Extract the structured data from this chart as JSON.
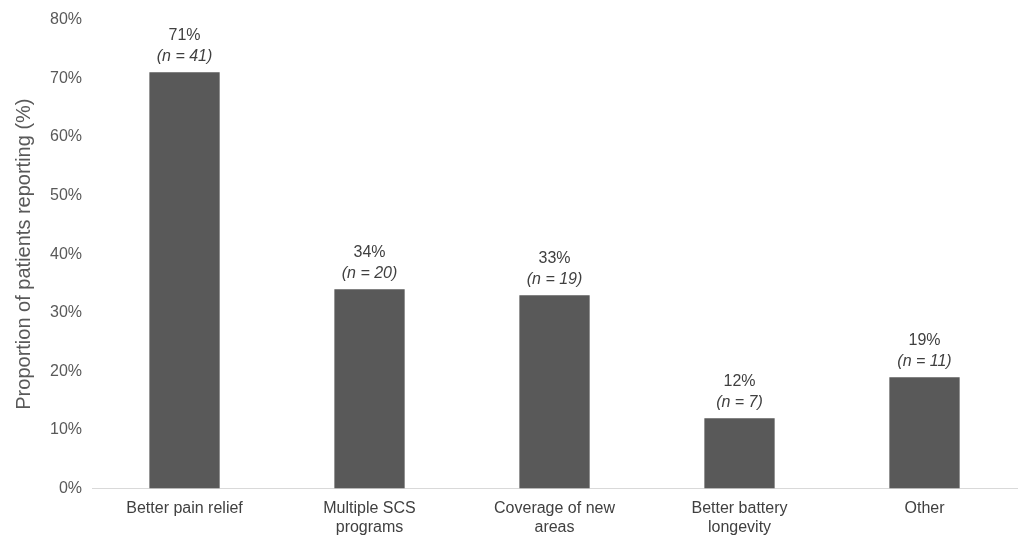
{
  "chart_data": {
    "type": "bar",
    "ylabel": "Proportion of patients reporting (%)",
    "categories": [
      "Better pain relief",
      "Multiple SCS programs",
      "Coverage of new areas",
      "Better battery longevity",
      "Other"
    ],
    "values": [
      71,
      34,
      33,
      12,
      19
    ],
    "value_labels": [
      "71%\n(n = 41)",
      "34%\n(n = 20)",
      "33%\n(n = 19)",
      "12%\n(n = 7)",
      "19%\n(n = 11)"
    ],
    "color": "#595959",
    "ylim": [
      0,
      80
    ],
    "yticks": [
      {
        "value": 0,
        "label": "0%"
      },
      {
        "value": 10,
        "label": "10%"
      },
      {
        "value": 20,
        "label": "20%"
      },
      {
        "value": 30,
        "label": "30%"
      },
      {
        "value": 40,
        "label": "40%"
      },
      {
        "value": 50,
        "label": "50%"
      },
      {
        "value": 60,
        "label": "60%"
      },
      {
        "value": 70,
        "label": "70%"
      },
      {
        "value": 80,
        "label": "80%"
      }
    ],
    "grid": false,
    "legend": false
  }
}
